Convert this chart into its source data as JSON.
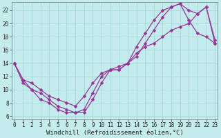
{
  "xlabel": "Windchill (Refroidissement éolien,°C)",
  "bg_color": "#c5eced",
  "line_color": "#993399",
  "grid_color": "#a8d8d8",
  "xlim": [
    -0.3,
    23.3
  ],
  "ylim": [
    5.5,
    23.2
  ],
  "xticks": [
    0,
    1,
    2,
    3,
    4,
    5,
    6,
    7,
    8,
    9,
    10,
    11,
    12,
    13,
    14,
    15,
    16,
    17,
    18,
    19,
    20,
    21,
    22,
    23
  ],
  "yticks": [
    6,
    8,
    10,
    12,
    14,
    16,
    18,
    20,
    22
  ],
  "line1_x": [
    0,
    1,
    2,
    3,
    4,
    5,
    6,
    7,
    8,
    9,
    10,
    11,
    12,
    13,
    14,
    15,
    16,
    17,
    18,
    19,
    20,
    21,
    22,
    23
  ],
  "line1_y": [
    14,
    11,
    10,
    9.5,
    8.5,
    7.5,
    7,
    6.5,
    6.5,
    8.5,
    11,
    13,
    13.5,
    14,
    15,
    17,
    19,
    21,
    22.5,
    23,
    22,
    21.5,
    22.5,
    17.5
  ],
  "line2_x": [
    0,
    1,
    2,
    3,
    4,
    5,
    6,
    7,
    8,
    9,
    10,
    11,
    12,
    13,
    14,
    15,
    16,
    17,
    18,
    19,
    20,
    21,
    22,
    23
  ],
  "line2_y": [
    14,
    11.5,
    10,
    8.5,
    8,
    7,
    6.5,
    6.5,
    7,
    9.5,
    12,
    13,
    13,
    14,
    16.5,
    18.5,
    20.5,
    22,
    22.5,
    23,
    20.5,
    18.5,
    18,
    17
  ],
  "line3_x": [
    0,
    1,
    2,
    3,
    4,
    5,
    6,
    7,
    8,
    9,
    10,
    11,
    12,
    13,
    14,
    15,
    16,
    17,
    18,
    19,
    20,
    21,
    22,
    23
  ],
  "line3_y": [
    14,
    11.5,
    11,
    10,
    9,
    8.5,
    8,
    7.5,
    9,
    11,
    12.5,
    13,
    13,
    14,
    15.5,
    16.5,
    17,
    18,
    19,
    19.5,
    20,
    21.5,
    22.5,
    17
  ],
  "marker": "D",
  "markersize": 2.5,
  "linewidth": 0.9,
  "tick_fontsize": 5.5,
  "label_fontsize": 6.5
}
